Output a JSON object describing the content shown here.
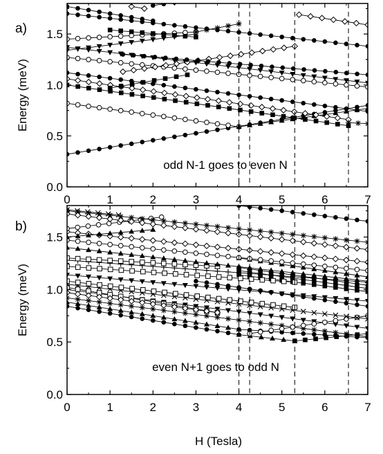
{
  "x_axis_label": "H (Tesla)",
  "chart_data": [
    {
      "type": "line",
      "panel_label": "a)",
      "ylabel": "Energy (meV)",
      "annotation": "odd N-1 goes to even N",
      "xlim": [
        0,
        7
      ],
      "ylim": [
        0,
        1.8
      ],
      "xticks": [
        "0",
        "1",
        "2",
        "3",
        "4",
        "5",
        "6",
        "7"
      ],
      "yticks": [
        "0.0",
        "0.5",
        "1.0",
        "1.5"
      ],
      "ytick_values": [
        0,
        0.5,
        1.0,
        1.5
      ],
      "vlines": [
        4.0,
        4.25,
        5.3,
        6.55
      ],
      "series": [
        {
          "marker": "circle",
          "x": [
            0,
            7
          ],
          "y": [
            0.32,
            0.8
          ]
        },
        {
          "marker": "open-circle",
          "x": [
            0,
            4.0
          ],
          "y": [
            0.82,
            0.59
          ]
        },
        {
          "marker": "triangle",
          "x": [
            4.0,
            7
          ],
          "y": [
            0.59,
            0.77
          ]
        },
        {
          "marker": "square",
          "x": [
            0,
            6.55
          ],
          "y": [
            1.0,
            0.6
          ]
        },
        {
          "marker": "diamond",
          "x": [
            0,
            6.55
          ],
          "y": [
            1.06,
            0.66
          ]
        },
        {
          "marker": "circle",
          "x": [
            0,
            7
          ],
          "y": [
            1.12,
            0.74
          ]
        },
        {
          "marker": "square",
          "x": [
            1.0,
            2.8
          ],
          "y": [
            0.97,
            1.1
          ]
        },
        {
          "marker": "open-circle",
          "x": [
            0,
            7
          ],
          "y": [
            1.27,
            0.98
          ]
        },
        {
          "marker": "triangle-down",
          "x": [
            0,
            7
          ],
          "y": [
            1.37,
            1.02
          ]
        },
        {
          "marker": "diamond",
          "x": [
            1.3,
            5.3
          ],
          "y": [
            1.13,
            1.38
          ]
        },
        {
          "marker": "circle",
          "x": [
            1.3,
            7
          ],
          "y": [
            1.3,
            1.1
          ]
        },
        {
          "marker": "triangle-down",
          "x": [
            0,
            3.0
          ],
          "y": [
            1.34,
            1.5
          ]
        },
        {
          "marker": "open-circle",
          "x": [
            0,
            3.0
          ],
          "y": [
            1.45,
            1.52
          ]
        },
        {
          "marker": "circle",
          "x": [
            0,
            7
          ],
          "y": [
            1.7,
            1.38
          ]
        },
        {
          "marker": "square",
          "x": [
            1.0,
            3.0
          ],
          "y": [
            1.54,
            1.47
          ]
        },
        {
          "marker": "star",
          "x": [
            3.0,
            4.0
          ],
          "y": [
            1.52,
            1.6
          ]
        },
        {
          "marker": "circle",
          "x": [
            0,
            2.0
          ],
          "y": [
            1.77,
            1.63
          ]
        },
        {
          "marker": "diamond",
          "x": [
            1.5,
            1.8
          ],
          "y": [
            1.77,
            1.75
          ]
        },
        {
          "marker": "circle",
          "x": [
            2.0,
            3.0
          ],
          "y": [
            1.78,
            1.84
          ]
        },
        {
          "marker": "diamond",
          "x": [
            5.4,
            7
          ],
          "y": [
            1.69,
            1.59
          ]
        },
        {
          "marker": "star",
          "x": [
            6.55,
            7
          ],
          "y": [
            0.63,
            0.62
          ]
        }
      ]
    },
    {
      "type": "line",
      "panel_label": "b)",
      "ylabel": "Energy (meV)",
      "annotation": "even N+1 goes to odd N",
      "xlim": [
        0,
        7
      ],
      "ylim": [
        0,
        1.8
      ],
      "xticks": [
        "0",
        "1",
        "2",
        "3",
        "4",
        "5",
        "6",
        "7"
      ],
      "yticks": [
        "0.0",
        "0.5",
        "1.0",
        "1.5"
      ],
      "ytick_values": [
        0,
        0.5,
        1.0,
        1.5
      ],
      "vlines": [
        4.0,
        4.25,
        5.3,
        6.55
      ],
      "series": [
        {
          "marker": "circle",
          "x": [
            0,
            4.0
          ],
          "y": [
            0.84,
            0.57
          ]
        },
        {
          "marker": "triangle",
          "x": [
            4.0,
            5.3
          ],
          "y": [
            0.57,
            0.51
          ]
        },
        {
          "marker": "square",
          "x": [
            5.3,
            7
          ],
          "y": [
            0.51,
            0.58
          ]
        },
        {
          "marker": "triangle",
          "x": [
            0,
            4.0
          ],
          "y": [
            0.88,
            0.62
          ]
        },
        {
          "marker": "circle",
          "x": [
            4.0,
            7
          ],
          "y": [
            0.62,
            0.54
          ]
        },
        {
          "marker": "star",
          "x": [
            0,
            7
          ],
          "y": [
            0.92,
            0.55
          ]
        },
        {
          "marker": "triangle-down",
          "x": [
            0,
            7
          ],
          "y": [
            1.0,
            0.63
          ]
        },
        {
          "marker": "open-circle",
          "x": [
            4.25,
            7
          ],
          "y": [
            0.58,
            0.75
          ]
        },
        {
          "marker": "open-square",
          "x": [
            0,
            3.5
          ],
          "y": [
            1.02,
            0.78
          ]
        },
        {
          "marker": "cross",
          "x": [
            0,
            7
          ],
          "y": [
            1.05,
            0.72
          ]
        },
        {
          "marker": "diamond",
          "x": [
            0,
            3.5
          ],
          "y": [
            0.97,
            0.78
          ]
        },
        {
          "marker": "open-square",
          "x": [
            0,
            5.3
          ],
          "y": [
            1.08,
            0.83
          ]
        },
        {
          "marker": "triangle-down",
          "x": [
            0,
            7
          ],
          "y": [
            1.14,
            0.89
          ]
        },
        {
          "marker": "circle",
          "x": [
            3.0,
            7
          ],
          "y": [
            1.08,
            0.84
          ]
        },
        {
          "marker": "square",
          "x": [
            4.0,
            7
          ],
          "y": [
            1.14,
            0.98
          ]
        },
        {
          "marker": "open-square",
          "x": [
            0,
            5.3
          ],
          "y": [
            1.22,
            1.07
          ]
        },
        {
          "marker": "circle",
          "x": [
            4.0,
            7
          ],
          "y": [
            1.21,
            1.04
          ]
        },
        {
          "marker": "square",
          "x": [
            4.0,
            7
          ],
          "y": [
            1.18,
            1.01
          ]
        },
        {
          "marker": "triangle",
          "x": [
            4.0,
            7
          ],
          "y": [
            1.3,
            1.12
          ]
        },
        {
          "marker": "plus",
          "x": [
            0,
            7
          ],
          "y": [
            1.28,
            1.07
          ]
        },
        {
          "marker": "open-square",
          "x": [
            0,
            3.5
          ],
          "y": [
            1.3,
            1.22
          ]
        },
        {
          "marker": "triangle",
          "x": [
            0,
            7
          ],
          "y": [
            1.4,
            1.08
          ]
        },
        {
          "marker": "open-circle",
          "x": [
            0,
            7
          ],
          "y": [
            1.47,
            1.18
          ]
        },
        {
          "marker": "diamond",
          "x": [
            0,
            7
          ],
          "y": [
            1.55,
            1.26
          ]
        },
        {
          "marker": "triangle",
          "x": [
            0,
            2.0
          ],
          "y": [
            1.5,
            1.57
          ]
        },
        {
          "marker": "open-circle",
          "x": [
            0,
            2.2
          ],
          "y": [
            1.58,
            1.69
          ]
        },
        {
          "marker": "star",
          "x": [
            0,
            7
          ],
          "y": [
            1.75,
            1.45
          ]
        },
        {
          "marker": "diamond",
          "x": [
            0,
            7
          ],
          "y": [
            1.72,
            1.38
          ]
        },
        {
          "marker": "cross",
          "x": [
            0,
            1.2
          ],
          "y": [
            1.76,
            1.71
          ]
        },
        {
          "marker": "circle",
          "x": [
            4.0,
            7
          ],
          "y": [
            1.8,
            1.65
          ]
        }
      ]
    }
  ]
}
